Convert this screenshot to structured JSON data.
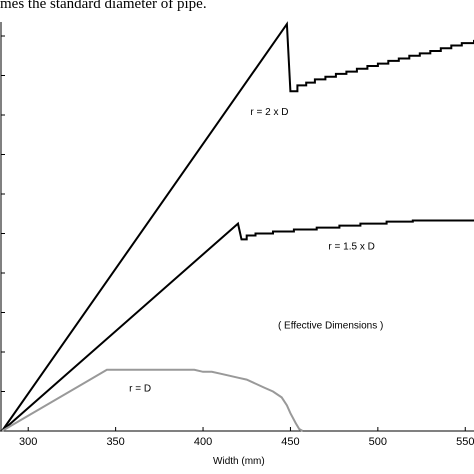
{
  "caption": {
    "text": "mes the standard diameter of pipe."
  },
  "chart_data": {
    "type": "line",
    "title": "",
    "xlabel": "Width (mm)",
    "ylabel": "",
    "xlim": [
      285,
      555
    ],
    "ylim": [
      0,
      10
    ],
    "x_ticks": [
      300,
      350,
      400,
      450,
      500,
      550
    ],
    "x_tick_labels": [
      "300",
      "350",
      "400",
      "450",
      "500",
      "550"
    ],
    "y_ticks": [
      0,
      1,
      2,
      3,
      4,
      5,
      6,
      7,
      8,
      9,
      10
    ],
    "grid": false,
    "legend": "none",
    "series": [
      {
        "name": "r = 2 x D",
        "color": "#000000",
        "x": [
          285,
          448,
          450,
          454,
          459,
          464,
          470,
          476,
          482,
          488,
          494,
          500,
          506,
          512,
          518,
          524,
          530,
          536,
          542,
          548,
          555
        ],
        "y": [
          0,
          10.3,
          8.6,
          8.75,
          8.82,
          8.9,
          8.97,
          9.04,
          9.1,
          9.17,
          9.24,
          9.3,
          9.37,
          9.43,
          9.5,
          9.56,
          9.62,
          9.69,
          9.76,
          9.82,
          9.9
        ]
      },
      {
        "name": "r = 1.5 x D",
        "color": "#000000",
        "x": [
          285,
          420,
          422,
          425,
          430,
          440,
          452,
          465,
          478,
          490,
          505,
          520,
          540,
          555
        ],
        "y": [
          0,
          5.25,
          4.85,
          4.95,
          5.0,
          5.05,
          5.1,
          5.15,
          5.2,
          5.25,
          5.3,
          5.33,
          5.33,
          5.33
        ],
        "label": "r = 1.5 x D"
      },
      {
        "name": "r = D",
        "color": "#999999",
        "x": [
          285,
          345,
          360,
          380,
          395,
          400,
          405,
          410,
          415,
          420,
          425,
          430,
          435,
          440,
          445,
          448,
          450,
          453,
          455,
          457
        ],
        "y": [
          0,
          1.55,
          1.55,
          1.55,
          1.55,
          1.5,
          1.5,
          1.45,
          1.4,
          1.35,
          1.3,
          1.2,
          1.1,
          1.0,
          0.85,
          0.65,
          0.45,
          0.2,
          0.05,
          0.0
        ]
      }
    ],
    "annotations": [
      {
        "text": "r = 2 x D",
        "x": 438,
        "y": 8.0
      },
      {
        "text": "r = 1.5 x D",
        "x": 485,
        "y": 4.6
      },
      {
        "text": "( Effective Dimensions )",
        "x": 473,
        "y": 2.6
      },
      {
        "text": "r = D",
        "x": 364,
        "y": 1.0
      }
    ]
  }
}
